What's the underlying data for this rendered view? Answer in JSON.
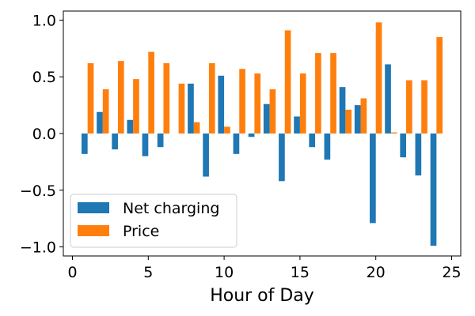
{
  "chart_data": {
    "type": "bar",
    "title": "",
    "xlabel": "Hour of Day",
    "ylabel": "",
    "xlim": [
      -0.6,
      25.6
    ],
    "ylim": [
      -1.08,
      1.08
    ],
    "xticks": [
      0,
      5,
      10,
      15,
      20,
      25
    ],
    "yticks": [
      -1.0,
      -0.5,
      0.0,
      0.5,
      1.0
    ],
    "xtick_labels": [
      "0",
      "5",
      "10",
      "15",
      "20",
      "25"
    ],
    "ytick_labels": [
      "−1.0",
      "−0.5",
      "0.0",
      "0.5",
      "1.0"
    ],
    "legend_position": "lower-left",
    "x": [
      1,
      2,
      3,
      4,
      5,
      6,
      7,
      8,
      9,
      10,
      11,
      12,
      13,
      14,
      15,
      16,
      17,
      18,
      19,
      20,
      21,
      22,
      23,
      24
    ],
    "bar_width": 0.4,
    "series": [
      {
        "name": "Net charging",
        "color": "#1f77b4",
        "offset": -0.2,
        "values": [
          -0.18,
          0.19,
          -0.14,
          0.12,
          -0.2,
          -0.12,
          0.0,
          0.44,
          -0.38,
          0.51,
          -0.18,
          -0.03,
          0.26,
          -0.42,
          0.15,
          -0.12,
          -0.23,
          0.41,
          0.25,
          -0.79,
          0.61,
          -0.21,
          -0.37,
          -0.99
        ]
      },
      {
        "name": "Price",
        "color": "#ff7f0e",
        "offset": 0.2,
        "values": [
          0.62,
          0.39,
          0.64,
          0.48,
          0.72,
          0.62,
          0.44,
          0.1,
          0.62,
          0.06,
          0.57,
          0.53,
          0.39,
          0.91,
          0.53,
          0.71,
          0.71,
          0.21,
          0.31,
          0.98,
          0.01,
          0.47,
          0.47,
          0.85
        ]
      }
    ]
  }
}
